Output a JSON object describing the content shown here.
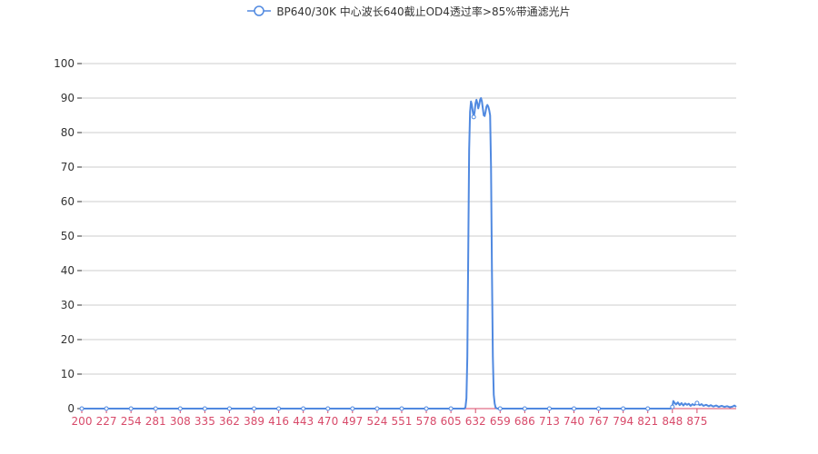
{
  "colors": {
    "series": "#5089e0",
    "grid": "#cccccc",
    "x_tick": "#d84a6a",
    "y_tick": "#333333",
    "x_axis": "#d84a6a"
  },
  "chart_data": {
    "type": "line",
    "title": "",
    "xlabel": "",
    "ylabel": "",
    "xlim": [
      200,
      918
    ],
    "ylim": [
      0,
      100
    ],
    "grid": true,
    "legend_position": "top-center",
    "y_ticks": [
      "0",
      "10",
      "20",
      "30",
      "40",
      "50",
      "60",
      "70",
      "80",
      "90",
      "100"
    ],
    "x_ticks": [
      "200",
      "227",
      "254",
      "281",
      "308",
      "335",
      "362",
      "389",
      "416",
      "443",
      "470",
      "497",
      "524",
      "551",
      "578",
      "605",
      "632",
      "659",
      "686",
      "713",
      "740",
      "767",
      "794",
      "821",
      "848",
      "875"
    ],
    "series": [
      {
        "name": "BP640/30K 中心波长640截止OD4透过率>85%带通滤光片",
        "points": [
          [
            200,
            0
          ],
          [
            227,
            0
          ],
          [
            254,
            0
          ],
          [
            281,
            0
          ],
          [
            308,
            0
          ],
          [
            335,
            0
          ],
          [
            362,
            0
          ],
          [
            389,
            0
          ],
          [
            416,
            0
          ],
          [
            443,
            0
          ],
          [
            470,
            0
          ],
          [
            497,
            0
          ],
          [
            524,
            0
          ],
          [
            551,
            0
          ],
          [
            578,
            0
          ],
          [
            605,
            0
          ],
          [
            620,
            0
          ],
          [
            621,
            0.5
          ],
          [
            622,
            3
          ],
          [
            623,
            15
          ],
          [
            624,
            45
          ],
          [
            625,
            75
          ],
          [
            626,
            86
          ],
          [
            627,
            89
          ],
          [
            628,
            88
          ],
          [
            629,
            86
          ],
          [
            630,
            84.5
          ],
          [
            631,
            86
          ],
          [
            632,
            88.5
          ],
          [
            633,
            89.5
          ],
          [
            634,
            88.5
          ],
          [
            635,
            87
          ],
          [
            636,
            88
          ],
          [
            637,
            89.5
          ],
          [
            638,
            90
          ],
          [
            639,
            89
          ],
          [
            640,
            87
          ],
          [
            641,
            85
          ],
          [
            642,
            84.8
          ],
          [
            643,
            86
          ],
          [
            644,
            87.5
          ],
          [
            645,
            88
          ],
          [
            646,
            87.5
          ],
          [
            647,
            86.5
          ],
          [
            648,
            85
          ],
          [
            649,
            70
          ],
          [
            650,
            40
          ],
          [
            651,
            15
          ],
          [
            652,
            4
          ],
          [
            653,
            1.5
          ],
          [
            654,
            0.3
          ],
          [
            656,
            0
          ],
          [
            659,
            0
          ],
          [
            686,
            0
          ],
          [
            713,
            0
          ],
          [
            740,
            0
          ],
          [
            767,
            0
          ],
          [
            794,
            0
          ],
          [
            821,
            0
          ],
          [
            846,
            0
          ],
          [
            848,
            0.5
          ],
          [
            849,
            2.2
          ],
          [
            850,
            1.8
          ],
          [
            852,
            1.2
          ],
          [
            854,
            1.8
          ],
          [
            856,
            1.0
          ],
          [
            858,
            1.6
          ],
          [
            860,
            0.9
          ],
          [
            862,
            1.5
          ],
          [
            864,
            1.1
          ],
          [
            866,
            1.4
          ],
          [
            868,
            0.8
          ],
          [
            870,
            1.3
          ],
          [
            872,
            1.0
          ],
          [
            875,
            1.6
          ],
          [
            878,
            1.0
          ],
          [
            880,
            1.3
          ],
          [
            882,
            0.8
          ],
          [
            885,
            1.1
          ],
          [
            888,
            0.7
          ],
          [
            890,
            1.0
          ],
          [
            893,
            0.6
          ],
          [
            896,
            0.9
          ],
          [
            899,
            0.5
          ],
          [
            902,
            0.8
          ],
          [
            905,
            0.5
          ],
          [
            908,
            0.7
          ],
          [
            911,
            0.4
          ],
          [
            914,
            0.6
          ],
          [
            916,
            0.9
          ],
          [
            918,
            0.5
          ]
        ],
        "symbol_points": [
          [
            200,
            0
          ],
          [
            227,
            0
          ],
          [
            254,
            0
          ],
          [
            281,
            0
          ],
          [
            308,
            0
          ],
          [
            335,
            0
          ],
          [
            362,
            0
          ],
          [
            389,
            0
          ],
          [
            416,
            0
          ],
          [
            443,
            0
          ],
          [
            470,
            0
          ],
          [
            497,
            0
          ],
          [
            524,
            0
          ],
          [
            551,
            0
          ],
          [
            578,
            0
          ],
          [
            605,
            0
          ],
          [
            630,
            84.5
          ],
          [
            659,
            0
          ],
          [
            686,
            0
          ],
          [
            713,
            0
          ],
          [
            740,
            0
          ],
          [
            767,
            0
          ],
          [
            794,
            0
          ],
          [
            821,
            0
          ],
          [
            848,
            0.5
          ],
          [
            875,
            1.6
          ]
        ]
      }
    ]
  }
}
